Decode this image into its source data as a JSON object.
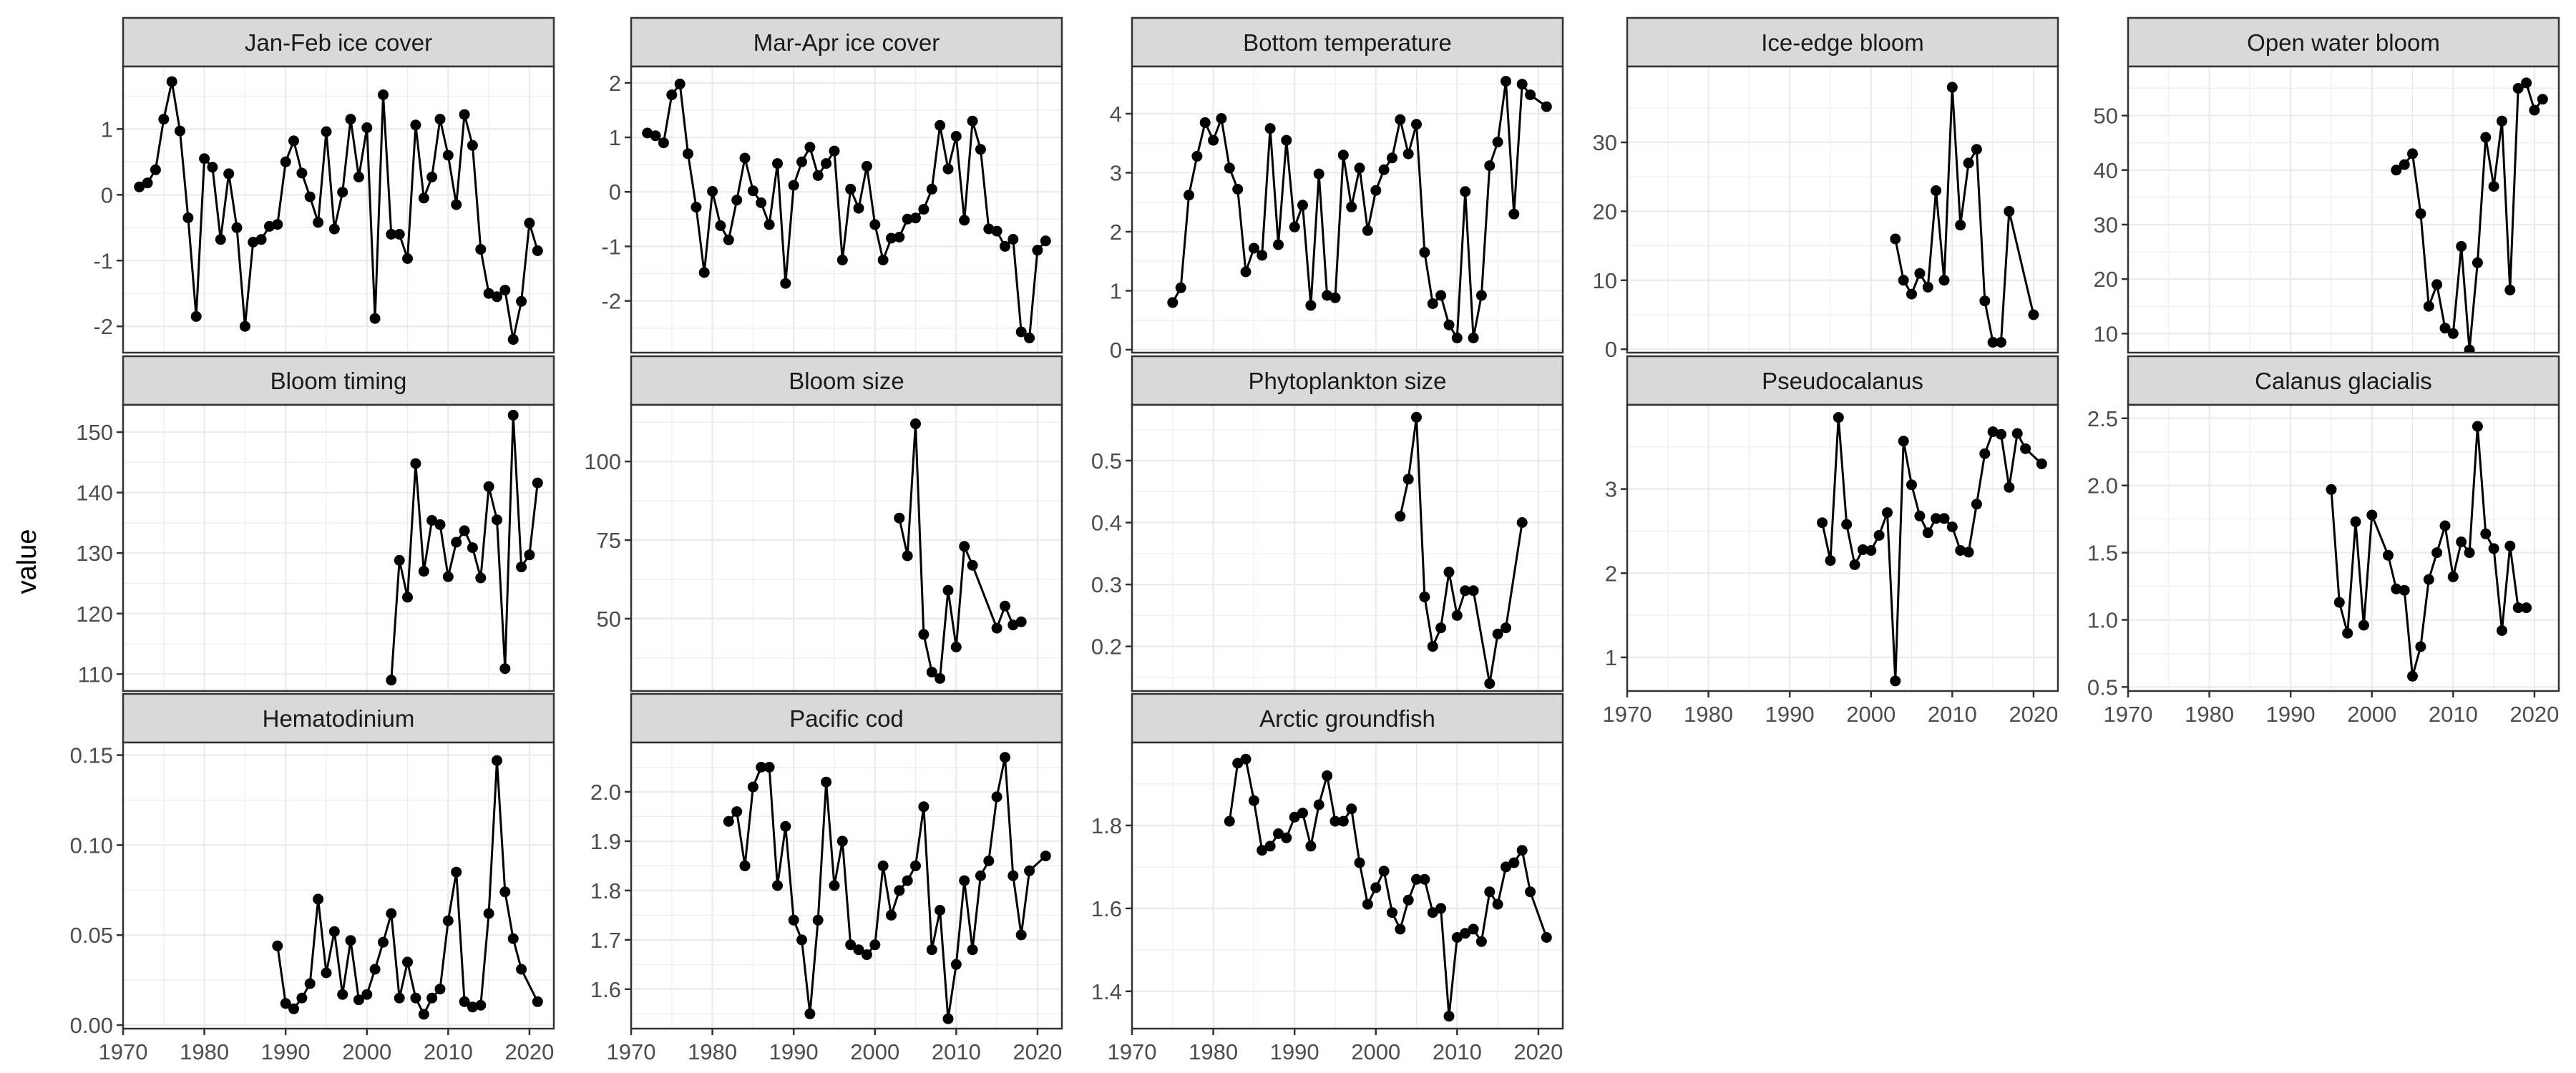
{
  "figure": {
    "ylabel": "value"
  },
  "chart_data": [
    {
      "type": "line",
      "title": "Jan-Feb ice cover",
      "ylim": [
        -2.4,
        1.95
      ],
      "yticks": [
        -2,
        -1,
        0,
        1
      ],
      "ytick_labels": [
        "-2",
        "-1",
        "0",
        "1"
      ],
      "xlim": [
        1970,
        2023
      ],
      "xticks": [],
      "xtick_labels": [],
      "x": [
        1972,
        1973,
        1974,
        1975,
        1976,
        1977,
        1978,
        1979,
        1980,
        1981,
        1982,
        1983,
        1984,
        1985,
        1986,
        1987,
        1988,
        1989,
        1990,
        1991,
        1992,
        1993,
        1994,
        1995,
        1996,
        1997,
        1998,
        1999,
        2000,
        2001,
        2002,
        2003,
        2004,
        2005,
        2006,
        2007,
        2008,
        2009,
        2010,
        2011,
        2012,
        2013,
        2014,
        2015,
        2016,
        2017,
        2018,
        2019,
        2020,
        2021
      ],
      "y": [
        0.12,
        0.18,
        0.38,
        1.15,
        1.72,
        0.97,
        -0.35,
        -1.85,
        0.55,
        0.42,
        -0.68,
        0.32,
        -0.5,
        -2.0,
        -0.72,
        -0.68,
        -0.48,
        -0.45,
        0.5,
        0.82,
        0.33,
        -0.03,
        -0.42,
        0.96,
        -0.52,
        0.04,
        1.15,
        0.27,
        1.02,
        -1.88,
        1.52,
        -0.6,
        -0.6,
        -0.97,
        1.06,
        -0.05,
        0.27,
        1.15,
        0.6,
        -0.15,
        1.22,
        0.75,
        -0.83,
        -1.5,
        -1.55,
        -1.45,
        -2.2,
        -1.62,
        -0.43,
        -0.85
      ]
    },
    {
      "type": "line",
      "title": "Mar-Apr ice cover",
      "ylim": [
        -2.95,
        2.3
      ],
      "yticks": [
        -2,
        -1,
        0,
        1,
        2
      ],
      "ytick_labels": [
        "-2",
        "-1",
        "0",
        "1",
        "2"
      ],
      "xlim": [
        1970,
        2023
      ],
      "xticks": [],
      "xtick_labels": [],
      "x": [
        1972,
        1973,
        1974,
        1975,
        1976,
        1977,
        1978,
        1979,
        1980,
        1981,
        1982,
        1983,
        1984,
        1985,
        1986,
        1987,
        1988,
        1989,
        1990,
        1991,
        1992,
        1993,
        1994,
        1995,
        1996,
        1997,
        1998,
        1999,
        2000,
        2001,
        2002,
        2003,
        2004,
        2005,
        2006,
        2007,
        2008,
        2009,
        2010,
        2011,
        2012,
        2013,
        2014,
        2015,
        2016,
        2017,
        2018,
        2019,
        2020,
        2021
      ],
      "y": [
        1.08,
        1.03,
        0.9,
        1.78,
        1.98,
        0.7,
        -0.28,
        -1.48,
        0.01,
        -0.62,
        -0.88,
        -0.15,
        0.62,
        0.02,
        -0.2,
        -0.6,
        0.52,
        -1.68,
        0.12,
        0.55,
        0.82,
        0.3,
        0.52,
        0.75,
        -1.25,
        0.05,
        -0.3,
        0.47,
        -0.6,
        -1.25,
        -0.85,
        -0.83,
        -0.5,
        -0.48,
        -0.32,
        0.05,
        1.22,
        0.42,
        1.02,
        -0.52,
        1.3,
        0.78,
        -0.68,
        -0.72,
        -1.0,
        -0.87,
        -2.57,
        -2.68,
        -1.07,
        -0.9
      ]
    },
    {
      "type": "line",
      "title": "Bottom temperature",
      "ylim": [
        -0.05,
        4.8
      ],
      "yticks": [
        0,
        1,
        2,
        3,
        4
      ],
      "ytick_labels": [
        "0",
        "1",
        "2",
        "3",
        "4"
      ],
      "xlim": [
        1970,
        2023
      ],
      "xticks": [],
      "xtick_labels": [],
      "x": [
        1975,
        1976,
        1977,
        1978,
        1979,
        1980,
        1981,
        1982,
        1983,
        1984,
        1985,
        1986,
        1987,
        1988,
        1989,
        1990,
        1991,
        1992,
        1993,
        1994,
        1995,
        1996,
        1997,
        1998,
        1999,
        2000,
        2001,
        2002,
        2003,
        2004,
        2005,
        2006,
        2007,
        2008,
        2009,
        2010,
        2011,
        2012,
        2013,
        2014,
        2015,
        2016,
        2017,
        2018,
        2019,
        2021
      ],
      "y": [
        0.8,
        1.05,
        2.62,
        3.28,
        3.85,
        3.55,
        3.92,
        3.08,
        2.72,
        1.32,
        1.72,
        1.6,
        3.75,
        1.78,
        3.55,
        2.08,
        2.45,
        0.75,
        2.98,
        0.92,
        0.88,
        3.3,
        2.42,
        3.08,
        2.02,
        2.7,
        3.05,
        3.25,
        3.9,
        3.32,
        3.82,
        1.65,
        0.78,
        0.92,
        0.42,
        0.2,
        2.68,
        0.2,
        0.92,
        3.12,
        3.52,
        4.55,
        2.3,
        4.5,
        4.32,
        4.12
      ]
    },
    {
      "type": "line",
      "title": "Ice-edge bloom",
      "ylim": [
        -0.5,
        41
      ],
      "yticks": [
        0,
        10,
        20,
        30
      ],
      "ytick_labels": [
        "0",
        "10",
        "20",
        "30"
      ],
      "xlim": [
        1970,
        2023
      ],
      "xticks": [],
      "xtick_labels": [],
      "x": [
        2003,
        2004,
        2005,
        2006,
        2007,
        2008,
        2009,
        2010,
        2011,
        2012,
        2013,
        2014,
        2015,
        2016,
        2017,
        2020
      ],
      "y": [
        16,
        10,
        8,
        11,
        9,
        23,
        10,
        38,
        18,
        27,
        29,
        7,
        1,
        1,
        20,
        5
      ]
    },
    {
      "type": "line",
      "title": "Open water bloom",
      "ylim": [
        6.5,
        59
      ],
      "yticks": [
        10,
        20,
        30,
        40,
        50
      ],
      "ytick_labels": [
        "10",
        "20",
        "30",
        "40",
        "50"
      ],
      "xlim": [
        1970,
        2023
      ],
      "xticks": [],
      "xtick_labels": [],
      "x": [
        2003,
        2004,
        2005,
        2006,
        2007,
        2008,
        2009,
        2010,
        2011,
        2012,
        2013,
        2014,
        2015,
        2016,
        2017,
        2018,
        2019,
        2020,
        2021
      ],
      "y": [
        40,
        41,
        43,
        32,
        15,
        19,
        11,
        10,
        26,
        7,
        23,
        46,
        37,
        49,
        18,
        55,
        56,
        51,
        53
      ]
    },
    {
      "type": "line",
      "title": "Bloom timing",
      "ylim": [
        107.2,
        154.5
      ],
      "yticks": [
        110,
        120,
        130,
        140,
        150
      ],
      "ytick_labels": [
        "110",
        "120",
        "130",
        "140",
        "150"
      ],
      "xlim": [
        1970,
        2023
      ],
      "xticks": [],
      "xtick_labels": [],
      "x": [
        2003,
        2004,
        2005,
        2006,
        2007,
        2008,
        2009,
        2010,
        2011,
        2012,
        2013,
        2014,
        2015,
        2016,
        2017,
        2018,
        2019,
        2020,
        2021
      ],
      "y": [
        109,
        128.8,
        122.7,
        144.8,
        127,
        135.4,
        134.7,
        126.1,
        131.8,
        133.7,
        130.9,
        125.9,
        141,
        135.5,
        110.9,
        152.8,
        127.7,
        129.7,
        141.6
      ]
    },
    {
      "type": "line",
      "title": "Bloom size",
      "ylim": [
        27,
        118
      ],
      "yticks": [
        50,
        75,
        100
      ],
      "ytick_labels": [
        "50",
        "75",
        "100"
      ],
      "xlim": [
        1970,
        2023
      ],
      "xticks": [],
      "xtick_labels": [],
      "x": [
        2003,
        2004,
        2005,
        2006,
        2007,
        2008,
        2009,
        2010,
        2011,
        2012,
        2015,
        2016,
        2017,
        2018
      ],
      "y": [
        82,
        70,
        112,
        45,
        33,
        31,
        59,
        41,
        73,
        67,
        47,
        54,
        48,
        49
      ]
    },
    {
      "type": "line",
      "title": "Phytoplankton size",
      "ylim": [
        0.128,
        0.59
      ],
      "yticks": [
        0.2,
        0.3,
        0.4,
        0.5
      ],
      "ytick_labels": [
        "0.2",
        "0.3",
        "0.4",
        "0.5"
      ],
      "xlim": [
        1970,
        2023
      ],
      "xticks": [],
      "xtick_labels": [],
      "x": [
        2003,
        2004,
        2005,
        2006,
        2007,
        2008,
        2009,
        2010,
        2011,
        2012,
        2014,
        2015,
        2016,
        2018
      ],
      "y": [
        0.41,
        0.47,
        0.57,
        0.28,
        0.2,
        0.23,
        0.32,
        0.25,
        0.29,
        0.29,
        0.14,
        0.22,
        0.23,
        0.4
      ]
    },
    {
      "type": "line",
      "title": "Pseudocalanus",
      "ylim": [
        0.6,
        4.0
      ],
      "yticks": [
        1,
        2,
        3
      ],
      "ytick_labels": [
        "1",
        "2",
        "3"
      ],
      "xlim": [
        1970,
        2023
      ],
      "xticks": [
        1970,
        1980,
        1990,
        2000,
        2010,
        2020
      ],
      "xtick_labels": [
        "1970",
        "1980",
        "1990",
        "2000",
        "2010",
        "2020"
      ],
      "x": [
        1994,
        1995,
        1996,
        1997,
        1998,
        1999,
        2000,
        2001,
        2002,
        2003,
        2004,
        2005,
        2006,
        2007,
        2008,
        2009,
        2010,
        2011,
        2012,
        2013,
        2014,
        2015,
        2016,
        2017,
        2018,
        2019,
        2021
      ],
      "y": [
        2.6,
        2.15,
        3.85,
        2.58,
        2.1,
        2.28,
        2.27,
        2.45,
        2.72,
        0.72,
        3.57,
        3.05,
        2.68,
        2.48,
        2.65,
        2.65,
        2.55,
        2.27,
        2.25,
        2.82,
        3.42,
        3.68,
        3.65,
        3.02,
        3.66,
        3.48,
        3.3
      ]
    },
    {
      "type": "line",
      "title": "Calanus glacialis",
      "ylim": [
        0.47,
        2.6
      ],
      "yticks": [
        0.5,
        1.0,
        1.5,
        2.0,
        2.5
      ],
      "ytick_labels": [
        "0.5",
        "1.0",
        "1.5",
        "2.0",
        "2.5"
      ],
      "xlim": [
        1970,
        2023
      ],
      "xticks": [
        1970,
        1980,
        1990,
        2000,
        2010,
        2020
      ],
      "xtick_labels": [
        "1970",
        "1980",
        "1990",
        "2000",
        "2010",
        "2020"
      ],
      "x": [
        1995,
        1996,
        1997,
        1998,
        1999,
        2000,
        2002,
        2003,
        2004,
        2005,
        2006,
        2007,
        2008,
        2009,
        2010,
        2011,
        2012,
        2013,
        2014,
        2015,
        2016,
        2017,
        2018,
        2019
      ],
      "y": [
        1.97,
        1.13,
        0.9,
        1.73,
        0.96,
        1.78,
        1.48,
        1.23,
        1.22,
        0.58,
        0.8,
        1.3,
        1.5,
        1.7,
        1.32,
        1.58,
        1.5,
        2.44,
        1.64,
        1.53,
        0.92,
        1.55,
        1.09,
        1.09
      ]
    },
    {
      "type": "line",
      "title": "Hematodinium",
      "ylim": [
        -0.002,
        0.157
      ],
      "yticks": [
        0.0,
        0.05,
        0.1,
        0.15
      ],
      "ytick_labels": [
        "0.00",
        "0.05",
        "0.10",
        "0.15"
      ],
      "xlim": [
        1970,
        2023
      ],
      "xticks": [
        1970,
        1980,
        1990,
        2000,
        2010,
        2020
      ],
      "xtick_labels": [
        "1970",
        "1980",
        "1990",
        "2000",
        "2010",
        "2020"
      ],
      "x": [
        1989,
        1990,
        1991,
        1992,
        1993,
        1994,
        1995,
        1996,
        1997,
        1998,
        1999,
        2000,
        2001,
        2002,
        2003,
        2004,
        2005,
        2006,
        2007,
        2008,
        2009,
        2010,
        2011,
        2012,
        2013,
        2014,
        2015,
        2016,
        2017,
        2018,
        2019,
        2021
      ],
      "y": [
        0.044,
        0.012,
        0.009,
        0.015,
        0.023,
        0.07,
        0.029,
        0.052,
        0.017,
        0.047,
        0.014,
        0.017,
        0.031,
        0.046,
        0.062,
        0.015,
        0.035,
        0.015,
        0.006,
        0.015,
        0.02,
        0.058,
        0.085,
        0.013,
        0.01,
        0.011,
        0.062,
        0.147,
        0.074,
        0.048,
        0.031,
        0.013
      ]
    },
    {
      "type": "line",
      "title": "Pacific cod",
      "ylim": [
        1.52,
        2.1
      ],
      "yticks": [
        1.6,
        1.7,
        1.8,
        1.9,
        2.0
      ],
      "ytick_labels": [
        "1.6",
        "1.7",
        "1.8",
        "1.9",
        "2.0"
      ],
      "xlim": [
        1970,
        2023
      ],
      "xticks": [
        1970,
        1980,
        1990,
        2000,
        2010,
        2020
      ],
      "xtick_labels": [
        "1970",
        "1980",
        "1990",
        "2000",
        "2010",
        "2020"
      ],
      "x": [
        1982,
        1983,
        1984,
        1985,
        1986,
        1987,
        1988,
        1989,
        1990,
        1991,
        1992,
        1993,
        1994,
        1995,
        1996,
        1997,
        1998,
        1999,
        2000,
        2001,
        2002,
        2003,
        2004,
        2005,
        2006,
        2007,
        2008,
        2009,
        2010,
        2011,
        2012,
        2013,
        2014,
        2015,
        2016,
        2017,
        2018,
        2019,
        2021
      ],
      "y": [
        1.94,
        1.96,
        1.85,
        2.01,
        2.05,
        2.05,
        1.81,
        1.93,
        1.74,
        1.7,
        1.55,
        1.74,
        2.02,
        1.81,
        1.9,
        1.69,
        1.68,
        1.67,
        1.69,
        1.85,
        1.75,
        1.8,
        1.82,
        1.85,
        1.97,
        1.68,
        1.76,
        1.54,
        1.65,
        1.82,
        1.68,
        1.83,
        1.86,
        1.99,
        2.07,
        1.83,
        1.71,
        1.84,
        1.87
      ]
    },
    {
      "type": "line",
      "title": "Arctic groundfish",
      "ylim": [
        1.31,
        2.0
      ],
      "yticks": [
        1.4,
        1.6,
        1.8
      ],
      "ytick_labels": [
        "1.4",
        "1.6",
        "1.8"
      ],
      "xlim": [
        1970,
        2023
      ],
      "xticks": [
        1970,
        1980,
        1990,
        2000,
        2010,
        2020
      ],
      "xtick_labels": [
        "1970",
        "1980",
        "1990",
        "2000",
        "2010",
        "2020"
      ],
      "x": [
        1982,
        1983,
        1984,
        1985,
        1986,
        1987,
        1988,
        1989,
        1990,
        1991,
        1992,
        1993,
        1994,
        1995,
        1996,
        1997,
        1998,
        1999,
        2000,
        2001,
        2002,
        2003,
        2004,
        2005,
        2006,
        2007,
        2008,
        2009,
        2010,
        2011,
        2012,
        2013,
        2014,
        2015,
        2016,
        2017,
        2018,
        2019,
        2021
      ],
      "y": [
        1.81,
        1.95,
        1.96,
        1.86,
        1.74,
        1.75,
        1.78,
        1.77,
        1.82,
        1.83,
        1.75,
        1.85,
        1.92,
        1.81,
        1.81,
        1.84,
        1.71,
        1.61,
        1.65,
        1.69,
        1.59,
        1.55,
        1.62,
        1.67,
        1.67,
        1.59,
        1.6,
        1.34,
        1.53,
        1.54,
        1.55,
        1.52,
        1.64,
        1.61,
        1.7,
        1.71,
        1.74,
        1.64,
        1.53
      ]
    }
  ]
}
